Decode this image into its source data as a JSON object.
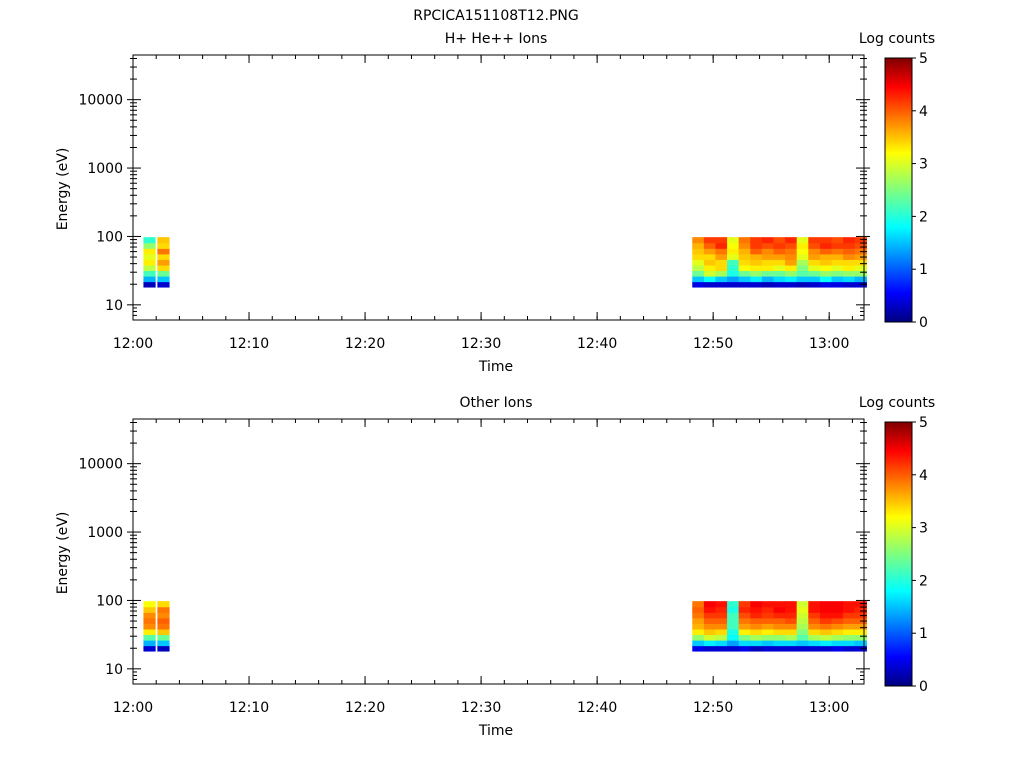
{
  "figure_title": "RPCICA151108T12.PNG",
  "chart_data": [
    {
      "type": "heatmap",
      "title": "H+ He++ Ions",
      "xlabel": "Time",
      "ylabel": "Energy (eV)",
      "x_ticks": [
        "12:00",
        "12:10",
        "12:20",
        "12:30",
        "12:40",
        "12:50",
        "13:00"
      ],
      "y_ticks": [
        "10",
        "100",
        "1000",
        "10000"
      ],
      "y_scale": "log",
      "x_range": [
        "12:00",
        "13:03"
      ],
      "y_range": [
        6,
        45000
      ],
      "colorbar_label": "Log counts",
      "colorbar_ticks": [
        "0",
        "1",
        "2",
        "3",
        "4",
        "5"
      ],
      "colorbar_range": [
        0,
        5
      ],
      "colormap": "jet",
      "energy_bins_eV": [
        20,
        24,
        29,
        35,
        42,
        51,
        61,
        74,
        89
      ],
      "columns": [
        {
          "t": "12:00.9",
          "lowest_bin": 0,
          "log_counts": [
            0.3,
            1.5,
            2.2,
            2.8,
            3.2,
            3.0,
            3.2,
            2.6,
            2.1
          ]
        },
        {
          "t": "12:02.1",
          "lowest_bin": 0,
          "log_counts": [
            0.4,
            1.6,
            2.4,
            3.3,
            3.6,
            3.3,
            3.8,
            3.3,
            3.4
          ]
        },
        {
          "t": "12:48.2",
          "lowest_bin": 0,
          "log_counts": [
            0.5,
            1.6,
            2.4,
            2.8,
            3.0,
            3.3,
            3.4,
            3.5,
            3.7
          ]
        },
        {
          "t": "12:49.2",
          "lowest_bin": 0,
          "log_counts": [
            0.4,
            1.9,
            2.9,
            3.2,
            3.4,
            3.3,
            3.6,
            3.9,
            4.1
          ]
        },
        {
          "t": "12:50.2",
          "lowest_bin": 0,
          "log_counts": [
            0.4,
            1.6,
            2.7,
            3.3,
            3.3,
            3.6,
            3.8,
            4.2,
            4.1
          ]
        },
        {
          "t": "12:51.2",
          "lowest_bin": 0,
          "log_counts": [
            0.4,
            1.4,
            2.0,
            2.1,
            2.2,
            3.0,
            3.2,
            3.1,
            3.0
          ]
        },
        {
          "t": "12:52.2",
          "lowest_bin": 0,
          "log_counts": [
            0.4,
            1.6,
            2.4,
            3.1,
            3.3,
            3.4,
            3.5,
            3.7,
            3.8
          ]
        },
        {
          "t": "12:53.2",
          "lowest_bin": 0,
          "log_counts": [
            0.4,
            1.8,
            2.6,
            3.2,
            3.4,
            3.5,
            3.9,
            4.1,
            4.1
          ]
        },
        {
          "t": "12:54.2",
          "lowest_bin": 1,
          "log_counts": [
            0.3,
            1.5,
            2.4,
            3.2,
            3.3,
            3.6,
            3.7,
            4.0,
            4.2
          ]
        },
        {
          "t": "12:55.2",
          "lowest_bin": 1,
          "log_counts": [
            0.4,
            1.7,
            2.4,
            3.0,
            3.3,
            3.6,
            3.9,
            4.1,
            4.0
          ]
        },
        {
          "t": "12:56.2",
          "lowest_bin": 1,
          "log_counts": [
            0.4,
            1.8,
            2.6,
            3.2,
            3.6,
            3.7,
            3.8,
            4.0,
            4.2
          ]
        },
        {
          "t": "12:57.2",
          "lowest_bin": 1,
          "log_counts": [
            0.3,
            1.6,
            2.3,
            2.5,
            2.7,
            3.0,
            3.1,
            3.2,
            3.0
          ]
        },
        {
          "t": "12:58.2",
          "lowest_bin": 1,
          "log_counts": [
            0.4,
            1.6,
            2.4,
            3.0,
            3.3,
            3.6,
            3.7,
            4.0,
            4.1
          ]
        },
        {
          "t": "12:59.2",
          "lowest_bin": 1,
          "log_counts": [
            0.5,
            1.9,
            2.6,
            3.1,
            3.4,
            3.5,
            3.9,
            4.2,
            4.1
          ]
        },
        {
          "t": "13:00.2",
          "lowest_bin": 1,
          "log_counts": [
            0.5,
            1.6,
            2.5,
            3.0,
            3.3,
            3.5,
            3.8,
            4.1,
            4.0
          ]
        },
        {
          "t": "13:01.2",
          "lowest_bin": 1,
          "log_counts": [
            0.4,
            1.7,
            2.6,
            3.2,
            3.3,
            3.7,
            3.9,
            4.1,
            4.2
          ]
        },
        {
          "t": "13:02.2",
          "lowest_bin": 1,
          "log_counts": [
            0.4,
            1.5,
            2.6,
            3.0,
            3.3,
            3.6,
            3.8,
            4.0,
            4.1
          ]
        }
      ]
    },
    {
      "type": "heatmap",
      "title": "Other Ions",
      "xlabel": "Time",
      "ylabel": "Energy (eV)",
      "x_ticks": [
        "12:00",
        "12:10",
        "12:20",
        "12:30",
        "12:40",
        "12:50",
        "13:00"
      ],
      "y_ticks": [
        "10",
        "100",
        "1000",
        "10000"
      ],
      "y_scale": "log",
      "x_range": [
        "12:00",
        "13:03"
      ],
      "y_range": [
        6,
        45000
      ],
      "colorbar_label": "Log counts",
      "colorbar_ticks": [
        "0",
        "1",
        "2",
        "3",
        "4",
        "5"
      ],
      "colorbar_range": [
        0,
        5
      ],
      "colormap": "jet",
      "energy_bins_eV": [
        20,
        24,
        29,
        35,
        42,
        51,
        61,
        74,
        89
      ],
      "columns": [
        {
          "t": "12:00.9",
          "lowest_bin": 0,
          "log_counts": [
            0.4,
            1.5,
            2.3,
            3.2,
            3.7,
            3.8,
            3.7,
            3.4,
            3.1
          ]
        },
        {
          "t": "12:02.1",
          "lowest_bin": 0,
          "log_counts": [
            0.3,
            1.6,
            2.4,
            3.4,
            3.8,
            3.9,
            3.7,
            3.8,
            3.3
          ]
        },
        {
          "t": "12:48.2",
          "lowest_bin": 0,
          "log_counts": [
            0.5,
            1.6,
            2.6,
            3.2,
            3.5,
            3.6,
            3.8,
            3.9,
            3.8
          ]
        },
        {
          "t": "12:49.2",
          "lowest_bin": 0,
          "log_counts": [
            0.4,
            1.8,
            2.9,
            3.4,
            3.7,
            3.9,
            4.1,
            4.3,
            4.4
          ]
        },
        {
          "t": "12:50.2",
          "lowest_bin": 0,
          "log_counts": [
            0.4,
            1.7,
            2.8,
            3.3,
            3.7,
            3.9,
            4.1,
            4.2,
            4.3
          ]
        },
        {
          "t": "12:51.2",
          "lowest_bin": 0,
          "log_counts": [
            0.4,
            1.4,
            1.9,
            2.0,
            2.2,
            2.2,
            2.2,
            2.0,
            2.1
          ]
        },
        {
          "t": "12:52.2",
          "lowest_bin": 0,
          "log_counts": [
            0.5,
            1.7,
            2.5,
            3.2,
            3.6,
            3.8,
            4.0,
            4.2,
            4.1
          ]
        },
        {
          "t": "12:53.2",
          "lowest_bin": 0,
          "log_counts": [
            0.3,
            1.7,
            2.7,
            3.3,
            3.7,
            3.9,
            4.2,
            4.3,
            4.4
          ]
        },
        {
          "t": "12:54.2",
          "lowest_bin": 1,
          "log_counts": [
            0.4,
            1.6,
            2.6,
            3.2,
            3.6,
            3.9,
            4.1,
            4.2,
            4.3
          ]
        },
        {
          "t": "12:55.2",
          "lowest_bin": 1,
          "log_counts": [
            0.4,
            1.7,
            2.6,
            3.3,
            3.7,
            3.9,
            4.2,
            4.4,
            4.3
          ]
        },
        {
          "t": "12:56.2",
          "lowest_bin": 1,
          "log_counts": [
            0.4,
            1.7,
            2.7,
            3.3,
            3.7,
            4.0,
            4.2,
            4.3,
            4.3
          ]
        },
        {
          "t": "12:57.2",
          "lowest_bin": 1,
          "log_counts": [
            0.4,
            1.6,
            2.3,
            2.5,
            2.7,
            2.8,
            2.9,
            3.0,
            2.9
          ]
        },
        {
          "t": "12:58.2",
          "lowest_bin": 1,
          "log_counts": [
            0.4,
            1.7,
            2.7,
            3.3,
            3.7,
            3.9,
            4.1,
            4.3,
            4.3
          ]
        },
        {
          "t": "12:59.2",
          "lowest_bin": 1,
          "log_counts": [
            0.4,
            1.8,
            2.8,
            3.4,
            3.8,
            4.1,
            4.3,
            4.4,
            4.4
          ]
        },
        {
          "t": "13:00.2",
          "lowest_bin": 1,
          "log_counts": [
            0.5,
            1.7,
            2.7,
            3.3,
            3.7,
            4.0,
            4.3,
            4.4,
            4.4
          ]
        },
        {
          "t": "13:01.2",
          "lowest_bin": 1,
          "log_counts": [
            0.4,
            1.7,
            2.6,
            3.2,
            3.6,
            3.9,
            4.1,
            4.3,
            4.3
          ]
        },
        {
          "t": "13:02.2",
          "lowest_bin": 1,
          "log_counts": [
            0.4,
            1.6,
            2.6,
            3.2,
            3.6,
            3.9,
            4.1,
            4.2,
            4.3
          ]
        }
      ]
    }
  ]
}
